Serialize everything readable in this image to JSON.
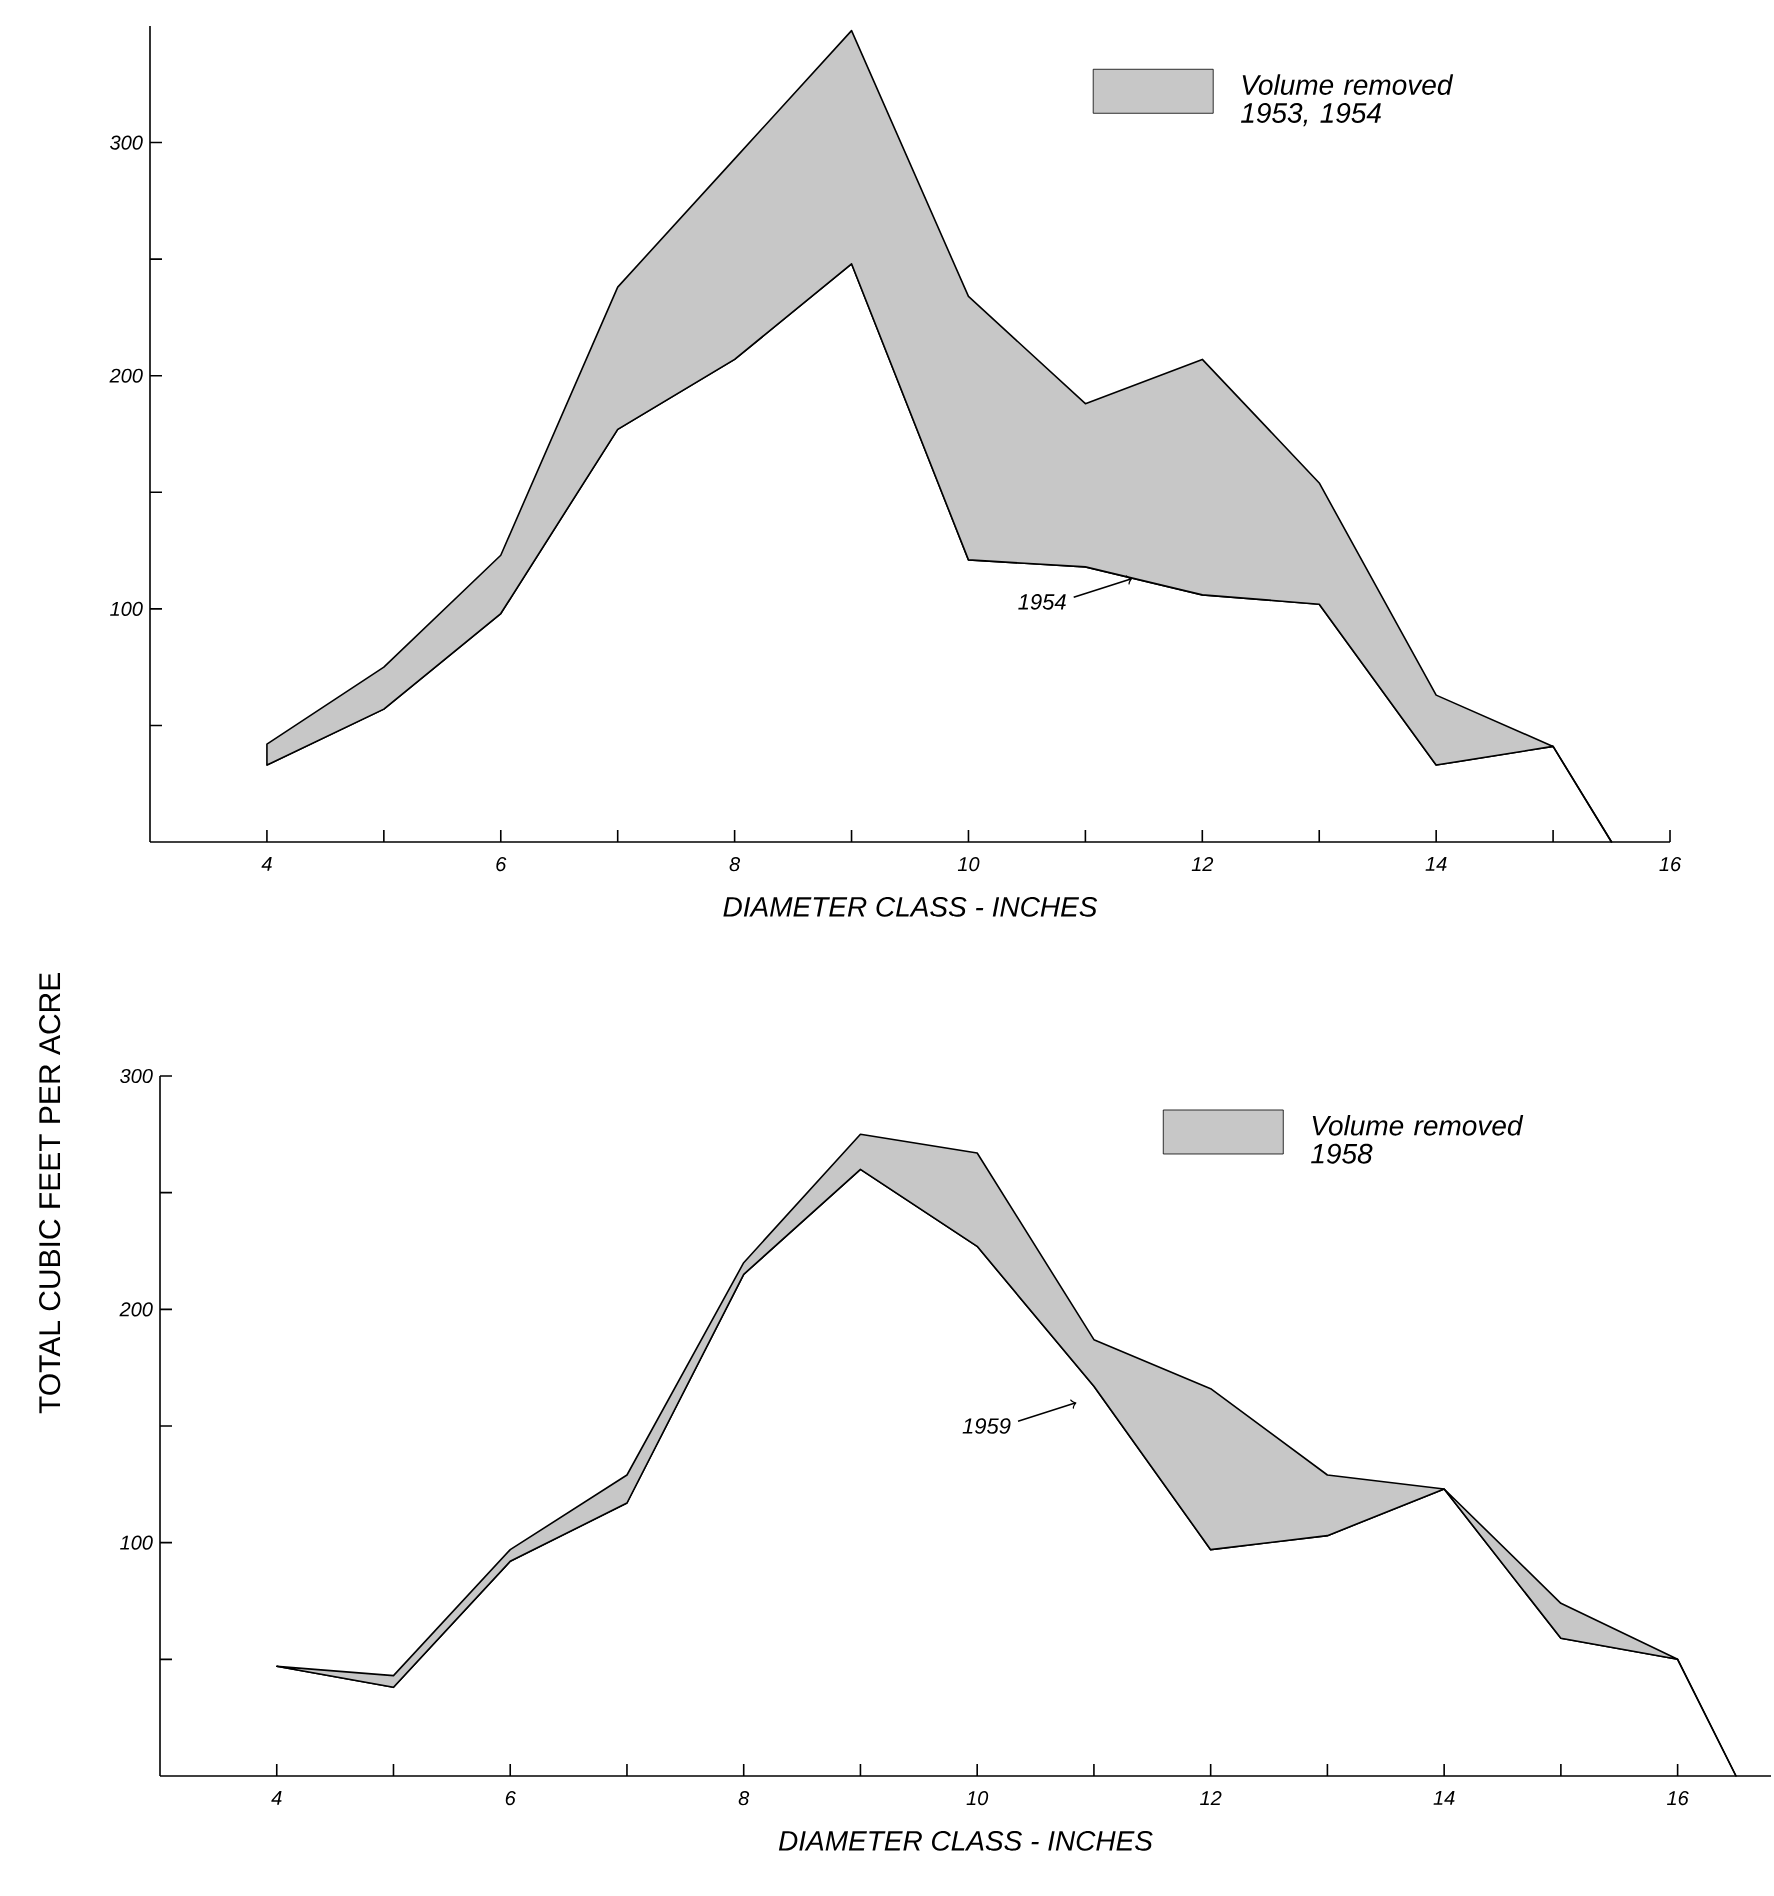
{
  "chart_data": [
    {
      "type": "line",
      "ylabel": "TOTAL CUBIC FEET PER ACRE",
      "xlabel": "DIAMETER CLASS - INCHES",
      "series": [
        {
          "type": "line",
          "color": "#000000",
          "x": [
            4,
            5,
            6,
            7,
            8,
            9,
            10,
            11,
            12,
            13,
            14,
            15,
            15.5
          ],
          "values": [
            33,
            57,
            98,
            177,
            207,
            248,
            121,
            118,
            106,
            102,
            33,
            41,
            0
          ]
        },
        {
          "type": "area",
          "name": "Volume removed 1953, 1954",
          "color": "#c7c7c7",
          "x": [
            4,
            5,
            6,
            7,
            8,
            9,
            10,
            11,
            12,
            13,
            14,
            15,
            15.5
          ],
          "values": [
            42,
            75,
            123,
            238,
            293,
            348,
            234,
            188,
            207,
            154,
            63,
            41,
            0
          ]
        }
      ],
      "xlim": [
        3,
        16
      ],
      "ylim": [
        0,
        350
      ],
      "xticks": [
        4,
        {
          "value": 5,
          "label": null
        },
        6,
        {
          "value": 7,
          "label": null
        },
        8,
        {
          "value": 9,
          "label": null
        },
        10,
        {
          "value": 11,
          "label": null
        },
        12,
        {
          "value": 13,
          "label": null
        },
        14,
        {
          "value": 15,
          "label": null
        },
        16
      ],
      "yticks": [
        {
          "value": 50,
          "label": null
        },
        100,
        {
          "value": 150,
          "label": null
        },
        200,
        {
          "value": 250,
          "label": null
        },
        300
      ],
      "legend": "top right",
      "line_style": "solid",
      "annotations": [
        {
          "text": "1954",
          "x": 11.4,
          "y": 113
        }
      ]
    },
    {
      "type": "line",
      "xlabel": "DIAMETER CLASS - INCHES",
      "series": [
        {
          "type": "line",
          "color": "#000000",
          "x": [
            4,
            5,
            6,
            7,
            8,
            9,
            10,
            11,
            12,
            13,
            14,
            15,
            16,
            16.5
          ],
          "values": [
            47,
            38,
            92,
            117,
            215,
            260,
            227,
            167,
            97,
            103,
            123,
            59,
            50,
            0
          ]
        },
        {
          "type": "area",
          "name": "Volume removed 1958",
          "color": "#c7c7c7",
          "x": [
            4,
            5,
            6,
            7,
            8,
            9,
            10,
            11,
            12,
            13,
            14,
            15,
            16,
            16.5
          ],
          "values": [
            47,
            43,
            97,
            129,
            220,
            275,
            267,
            187,
            166,
            129,
            123,
            74,
            50,
            0
          ]
        }
      ],
      "xlim": [
        3,
        16.8
      ],
      "ylim": [
        0,
        300
      ],
      "xticks": [
        4,
        {
          "value": 5,
          "label": null
        },
        6,
        {
          "value": 7,
          "label": null
        },
        8,
        {
          "value": 9,
          "label": null
        },
        10,
        {
          "value": 11,
          "label": null
        },
        12,
        {
          "value": 13,
          "label": null
        },
        14,
        {
          "value": 15,
          "label": null
        },
        16
      ],
      "yticks": [
        {
          "value": 50,
          "label": null
        },
        100,
        {
          "value": 150,
          "label": null
        },
        200,
        {
          "value": 250,
          "label": null
        },
        300
      ],
      "legend": "top right",
      "line_style": "solid",
      "annotations": [
        {
          "text": "1959",
          "x": 10.85,
          "y": 160
        }
      ]
    }
  ]
}
